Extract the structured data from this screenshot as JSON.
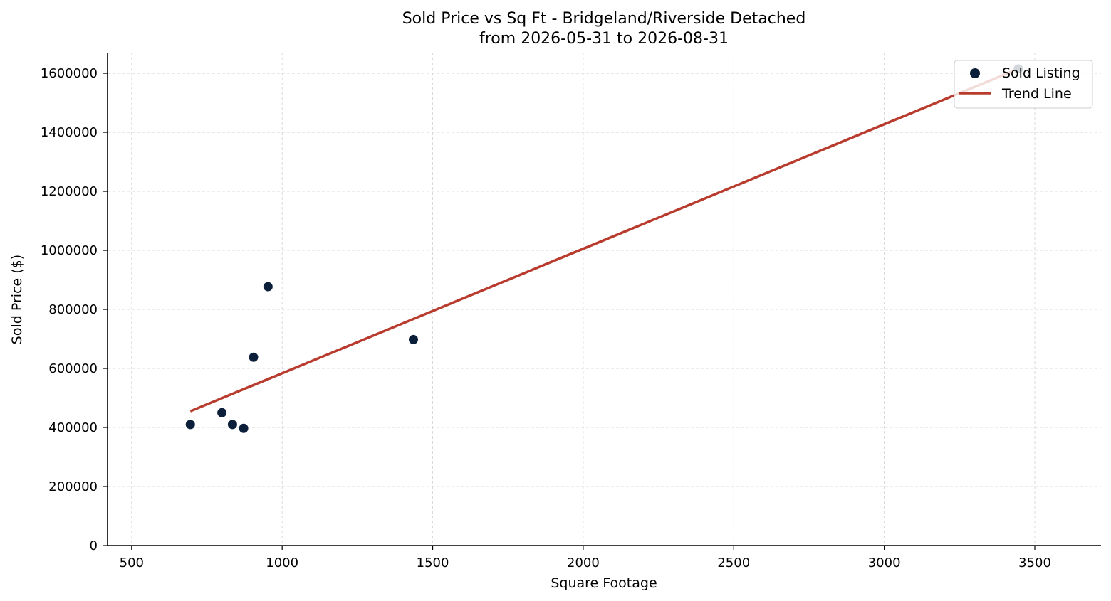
{
  "chart_data": {
    "type": "scatter",
    "title": "Sold Price vs Sq Ft - Bridgeland/Riverside Detached",
    "subtitle": "from 2026-05-31 to 2026-08-31",
    "xlabel": "Square Footage",
    "ylabel": "Sold Price ($)",
    "xlim": [
      420,
      3720
    ],
    "ylim": [
      0,
      1670000
    ],
    "xticks": [
      500,
      1000,
      1500,
      2000,
      2500,
      3000,
      3500
    ],
    "yticks": [
      0,
      200000,
      400000,
      600000,
      800000,
      1000000,
      1200000,
      1400000,
      1600000
    ],
    "grid": true,
    "legend_position": "top-right",
    "series": [
      {
        "name": "Sold Listing",
        "kind": "scatter",
        "color": "#0b1f3a",
        "points": [
          {
            "x": 695,
            "y": 410000
          },
          {
            "x": 800,
            "y": 450000
          },
          {
            "x": 835,
            "y": 410000
          },
          {
            "x": 872,
            "y": 397000
          },
          {
            "x": 905,
            "y": 638000
          },
          {
            "x": 953,
            "y": 877000
          },
          {
            "x": 1436,
            "y": 698000
          },
          {
            "x": 3445,
            "y": 1615000
          }
        ]
      },
      {
        "name": "Trend Line",
        "kind": "line",
        "color": "#b83b2e",
        "points": [
          {
            "x": 695,
            "y": 455000
          },
          {
            "x": 3445,
            "y": 1615000
          }
        ]
      }
    ]
  }
}
